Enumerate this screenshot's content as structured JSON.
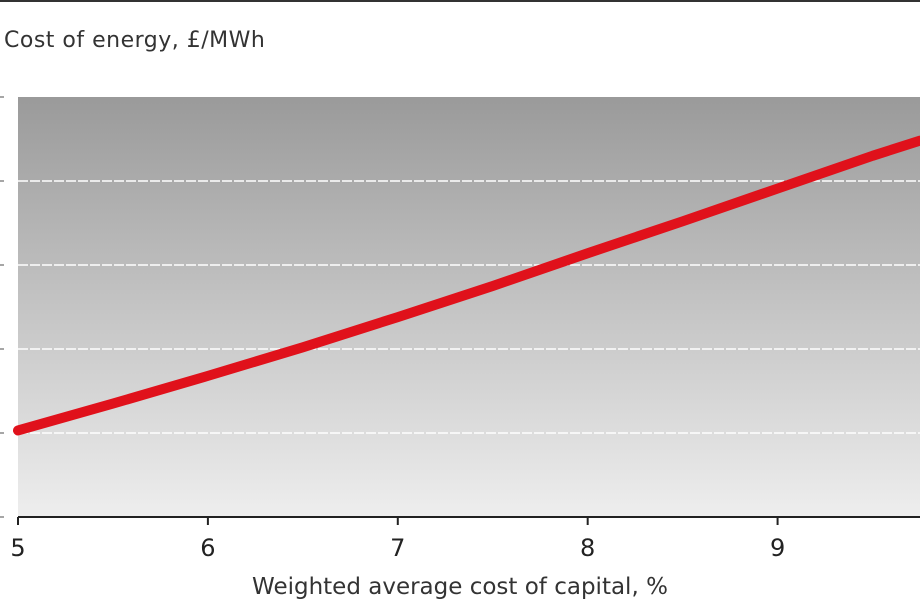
{
  "chart_data": {
    "type": "line",
    "title": "",
    "ylabel": "Cost of energy, £/MWh",
    "xlabel": "Weighted average cost of capital, %",
    "xlim": [
      5,
      9.75
    ],
    "ylim": [
      0,
      5
    ],
    "x_ticks": [
      "5",
      "6",
      "7",
      "8",
      "9"
    ],
    "grid": "horizontal dashed",
    "series": [
      {
        "color": "#e0111b",
        "x": [
          5,
          5.5,
          6,
          6.5,
          7,
          7.5,
          8,
          8.5,
          9,
          9.5,
          9.75
        ],
        "y": [
          1.03,
          1.35,
          1.68,
          2.02,
          2.38,
          2.75,
          3.14,
          3.52,
          3.91,
          4.3,
          4.48
        ]
      }
    ]
  },
  "colors": {
    "line": "#e0111b",
    "plot_top": "#9a9a9a",
    "plot_bottom": "#eeeeee",
    "grid": "#ffffff"
  }
}
